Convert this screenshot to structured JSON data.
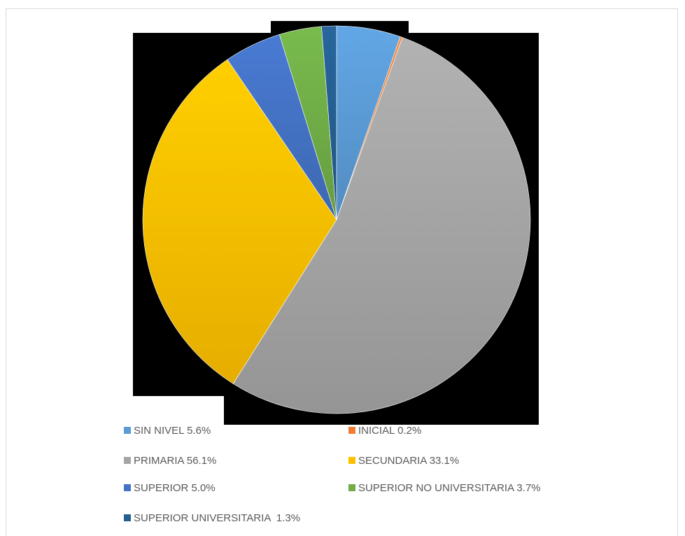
{
  "chart_data": {
    "type": "pie",
    "title": "",
    "slices": [
      {
        "label": "SIN NIVEL 5.6%",
        "value": 5.6,
        "color": "#5b9bd5"
      },
      {
        "label": "INICIAL 0.2%",
        "value": 0.2,
        "color": "#ed7d31"
      },
      {
        "label": "PRIMARIA 56.1%",
        "value": 56.1,
        "color": "#a5a5a5"
      },
      {
        "label": "SECUNDARIA 33.1%",
        "value": 33.1,
        "color": "#ffc000"
      },
      {
        "label": "SUPERIOR 5.0%",
        "value": 5.0,
        "color": "#4472c4"
      },
      {
        "label": "SUPERIOR NO UNIVERSITARIA 3.7%",
        "value": 3.7,
        "color": "#70ad47"
      },
      {
        "label": "SUPERIOR UNIVERSITARIA  1.3%",
        "value": 1.3,
        "color": "#255e91"
      }
    ],
    "legend_position": "bottom"
  }
}
